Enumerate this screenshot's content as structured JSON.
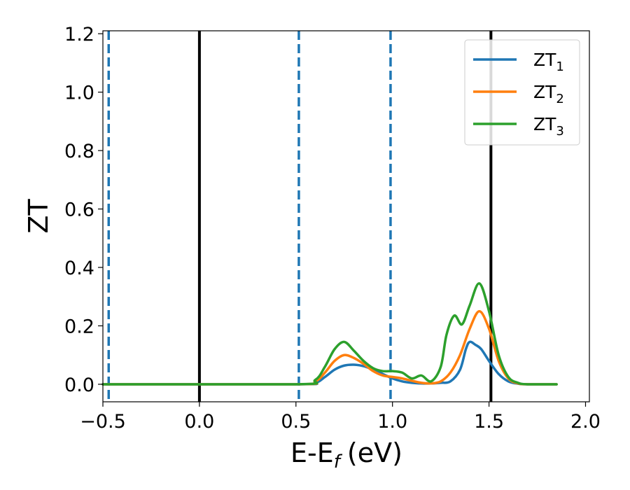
{
  "chart_data": {
    "type": "line",
    "xlabel": "E-E",
    "xlabel_sub": "f",
    "xlabel_unit": "(eV)",
    "ylabel": "ZT",
    "xlim": [
      -0.5,
      2.02
    ],
    "ylim": [
      -0.06,
      1.21
    ],
    "xticks": [
      -0.5,
      0.0,
      0.5,
      1.0,
      1.5,
      2.0
    ],
    "xtick_labels": [
      "−0.5",
      "0.0",
      "0.5",
      "1.0",
      "1.5",
      "2.0"
    ],
    "yticks": [
      0.0,
      0.2,
      0.4,
      0.6,
      0.8,
      1.0,
      1.2
    ],
    "ytick_labels": [
      "0.0",
      "0.2",
      "0.4",
      "0.6",
      "0.8",
      "1.0",
      "1.2"
    ],
    "grid": false,
    "legend_position": "top-right",
    "vlines": [
      {
        "x": -0.47,
        "style": "dashed",
        "color": "#1f77b4"
      },
      {
        "x": 0.0,
        "style": "solid",
        "color": "#000000"
      },
      {
        "x": 0.515,
        "style": "dashed",
        "color": "#1f77b4"
      },
      {
        "x": 0.99,
        "style": "dashed",
        "color": "#1f77b4"
      },
      {
        "x": 1.51,
        "style": "solid",
        "color": "#000000"
      }
    ],
    "series": [
      {
        "name": "ZT",
        "subscript": "1",
        "color": "#1f77b4",
        "x": [
          -0.5,
          0.5,
          0.6,
          0.65,
          0.7,
          0.75,
          0.8,
          0.85,
          0.9,
          0.95,
          1.0,
          1.05,
          1.1,
          1.15,
          1.2,
          1.25,
          1.3,
          1.35,
          1.38,
          1.4,
          1.43,
          1.46,
          1.5,
          1.55,
          1.6,
          1.65,
          1.7,
          1.85
        ],
        "y": [
          0.0,
          0.0,
          0.005,
          0.025,
          0.05,
          0.064,
          0.067,
          0.062,
          0.05,
          0.035,
          0.02,
          0.01,
          0.005,
          0.003,
          0.003,
          0.005,
          0.01,
          0.05,
          0.12,
          0.145,
          0.135,
          0.12,
          0.08,
          0.035,
          0.01,
          0.002,
          0.0,
          0.0
        ]
      },
      {
        "name": "ZT",
        "subscript": "2",
        "color": "#ff7f0e",
        "x": [
          -0.5,
          0.5,
          0.6,
          0.65,
          0.7,
          0.75,
          0.8,
          0.85,
          0.9,
          0.95,
          1.0,
          1.05,
          1.1,
          1.15,
          1.2,
          1.25,
          1.3,
          1.35,
          1.4,
          1.45,
          1.5,
          1.55,
          1.6,
          1.65,
          1.7,
          1.85
        ],
        "y": [
          0.0,
          0.0,
          0.01,
          0.04,
          0.08,
          0.1,
          0.09,
          0.07,
          0.045,
          0.03,
          0.025,
          0.02,
          0.012,
          0.005,
          0.003,
          0.01,
          0.04,
          0.1,
          0.19,
          0.25,
          0.19,
          0.08,
          0.02,
          0.003,
          0.0,
          0.0
        ]
      },
      {
        "name": "ZT",
        "subscript": "3",
        "color": "#2ca02c",
        "x": [
          -0.5,
          0.5,
          0.6,
          0.65,
          0.7,
          0.75,
          0.8,
          0.85,
          0.9,
          0.95,
          1.0,
          1.05,
          1.1,
          1.15,
          1.2,
          1.25,
          1.28,
          1.32,
          1.36,
          1.4,
          1.45,
          1.5,
          1.55,
          1.6,
          1.65,
          1.7,
          1.85
        ],
        "y": [
          0.0,
          0.0,
          0.015,
          0.06,
          0.12,
          0.145,
          0.115,
          0.08,
          0.055,
          0.045,
          0.045,
          0.04,
          0.02,
          0.03,
          0.01,
          0.06,
          0.17,
          0.235,
          0.205,
          0.27,
          0.345,
          0.25,
          0.1,
          0.025,
          0.005,
          0.0,
          0.0
        ]
      }
    ]
  }
}
